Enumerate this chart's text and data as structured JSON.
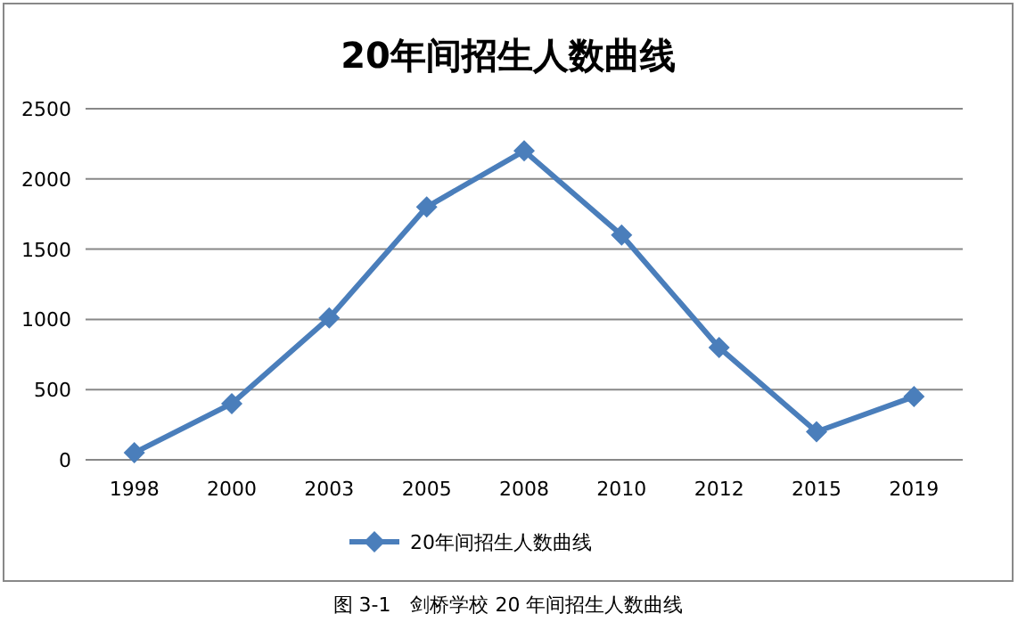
{
  "chart_data": {
    "type": "line",
    "title": "20年间招生人数曲线",
    "categories": [
      "1998",
      "2000",
      "2003",
      "2005",
      "2008",
      "2010",
      "2012",
      "2015",
      "2019"
    ],
    "series": [
      {
        "name": "20年间招生人数曲线",
        "color": "#4a7ebb",
        "values": [
          50,
          400,
          1010,
          1800,
          2200,
          1600,
          800,
          200,
          450
        ]
      }
    ],
    "ylim": [
      0,
      2500
    ],
    "yticks": [
      0,
      500,
      1000,
      1500,
      2000,
      2500
    ],
    "grid": "y",
    "legend": "bottom",
    "marker": "diamond",
    "line_style": "solid",
    "annotations": [
      "图 3-1　剑桥学校 20 年间招生人数曲线"
    ]
  }
}
